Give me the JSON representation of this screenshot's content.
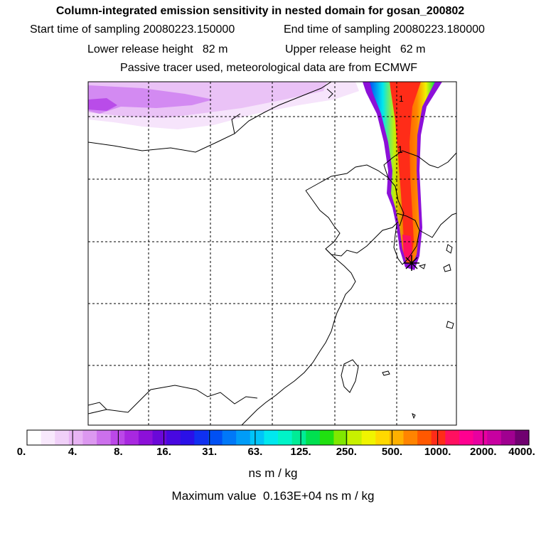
{
  "header": {
    "title": "Column-integrated emission sensitivity in nested domain for gosan_200802",
    "start_label": "Start time of sampling",
    "start_value": "20080223.150000",
    "end_label": "End time of sampling",
    "end_value": "20080223.180000",
    "lower_label": "Lower release height",
    "lower_value": "82 m",
    "upper_label": "Upper release height",
    "upper_value": "62 m",
    "note": "Passive tracer used, meteorological data are from ECMWF"
  },
  "map": {
    "marker_labels": [
      "1",
      "1"
    ],
    "release_site": "gosan"
  },
  "colorbar": {
    "ticks": [
      "0.",
      "4.",
      "8.",
      "16.",
      "31.",
      "63.",
      "125.",
      "250.",
      "500.",
      "1000.",
      "2000.",
      "4000."
    ],
    "colors": [
      "#ffffff",
      "#f8e8fc",
      "#f0d0f8",
      "#e8b4f4",
      "#dc98f0",
      "#cc70ec",
      "#bb48e8",
      "#a828e0",
      "#8c10d8",
      "#6a08d8",
      "#4808e0",
      "#2a10e8",
      "#1030f0",
      "#0050f4",
      "#0078f8",
      "#009cf8",
      "#00c4f8",
      "#00e8ee",
      "#00f4c8",
      "#00ec96",
      "#00e050",
      "#20e010",
      "#80e800",
      "#c8f000",
      "#f0f400",
      "#ffd800",
      "#ffb000",
      "#ff8400",
      "#ff5800",
      "#ff2c18",
      "#ff1060",
      "#ff0090",
      "#e800a0",
      "#c800a0",
      "#a00090",
      "#700070"
    ],
    "unit": "ns m / kg"
  },
  "max_label": "Maximum value",
  "max_value": "0.163E+04",
  "max_unit": "ns m / kg"
}
